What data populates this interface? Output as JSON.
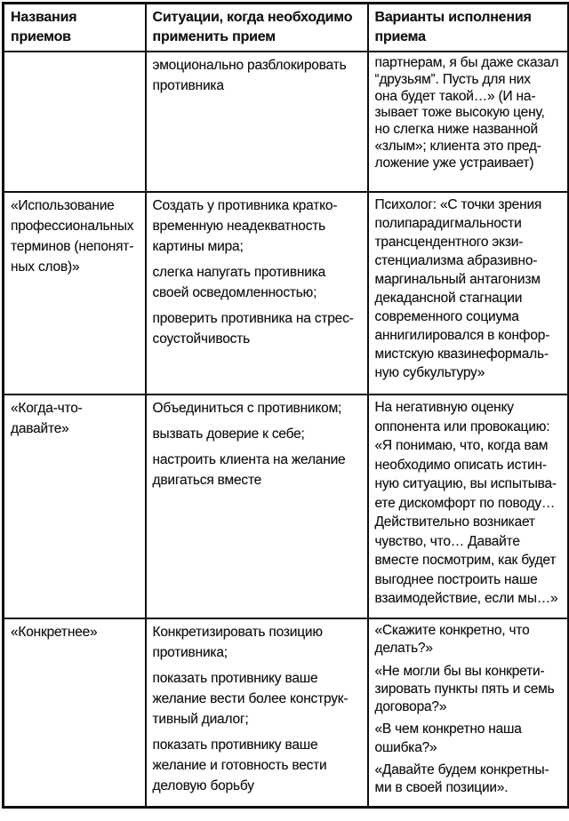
{
  "table": {
    "columns": [
      "Названия приемов",
      "Ситуации, когда необходимо\nприменить прием",
      "Варианты исполнения\nприема"
    ],
    "rows": [
      {
        "name": "",
        "situations": [
          "эмоционально разблокировать\nпротивника"
        ],
        "variants": [
          "партнерам, я бы даже сказал\n“друзьям”. Пусть для них\nона будет такой…» (И на-\nзывает тоже высокую цену,\nно слегка ниже названной\n«злым»; клиента это пред-\nложение уже устраивает)"
        ]
      },
      {
        "name": "«Использование\nпрофессиональных\nтерминов (непонят-\nных слов)»",
        "situations": [
          "Создать у противника кратко-\nвременную неадекватность\nкартины мира;",
          "слегка напугать противника\nсвоей осведомленностью;",
          "проверить противника на стрес-\nсоустойчивость"
        ],
        "variants": [
          "Психолог: «С точки зрения\nполипарадигмальности\nтрансцендентного экзи-\nстенциализма абразивно-\nмаргинальный антагонизм\nдекадансной стагнации\nсовременного социума\nаннигилировался в конфор-\nмистскую квазинеформаль-\nную субкультуру»"
        ]
      },
      {
        "name": "«Когда-что-\nдавайте»",
        "situations": [
          "Объединиться с противником;",
          "вызвать доверие к себе;",
          "настроить клиента на желание\nдвигаться вместе"
        ],
        "variants": [
          "На негативную оценку\nоппонента или провокацию:\n«Я понимаю, что, когда вам\nнеобходимо описать истин-\nную ситуацию, вы испытыва-\nете дискомфорт по поводу…\nДействительно возникает\nчувство, что… Давайте\nвместе посмотрим, как будет\nвыгоднее построить наше\nвзаимодействие, если мы…»"
        ]
      },
      {
        "name": "«Конкретнее»",
        "situations": [
          "Конкретизировать позицию\nпротивника;",
          "показать противнику ваше\nжелание вести более конструк-\nтивный диалог;",
          "показать противнику ваше\nжелание и готовность вести\nделовую борьбу"
        ],
        "variants": [
          "«Скажите конкретно, что\nделать?»",
          "«Не могли бы вы конкрети-\nзировать пункты пять и семь\nдоговора?»",
          "«В чем конкретно наша\nошибка?»",
          "«Давайте будем конкретны-\nми в своей позиции»."
        ]
      }
    ]
  }
}
